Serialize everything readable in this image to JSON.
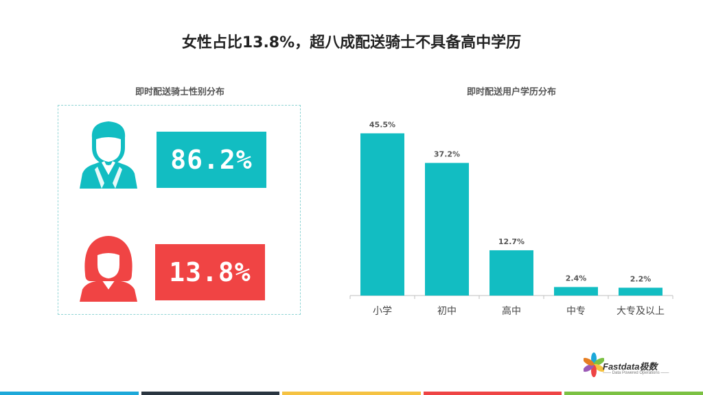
{
  "title": "女性占比13.8%，超八成配送骑士不具备高中学历",
  "gender_panel": {
    "subtitle": "即时配送骑士性别分布",
    "male_pct": "86.2%",
    "female_pct": "13.8%",
    "male_color": "#12bdc2",
    "female_color": "#f04444",
    "icons": [
      "male-avatar-icon",
      "female-avatar-icon"
    ]
  },
  "chart_data": {
    "type": "bar",
    "title": "即时配送用户学历分布",
    "categories": [
      "小学",
      "初中",
      "高中",
      "中专",
      "大专及以上"
    ],
    "values": [
      45.5,
      37.2,
      12.7,
      2.4,
      2.2
    ],
    "value_labels": [
      "45.5%",
      "37.2%",
      "12.7%",
      "2.4%",
      "2.2%"
    ],
    "ylim": [
      0,
      50
    ],
    "grid": false,
    "bar_color": "#12bdc2"
  },
  "logo": {
    "name": "Fastdata极数",
    "tagline": "—— Data Powered Operations ——"
  },
  "footer_colors": [
    "#1da8d9",
    "#2a3540",
    "#f5c242",
    "#ee4444",
    "#7bc143"
  ]
}
